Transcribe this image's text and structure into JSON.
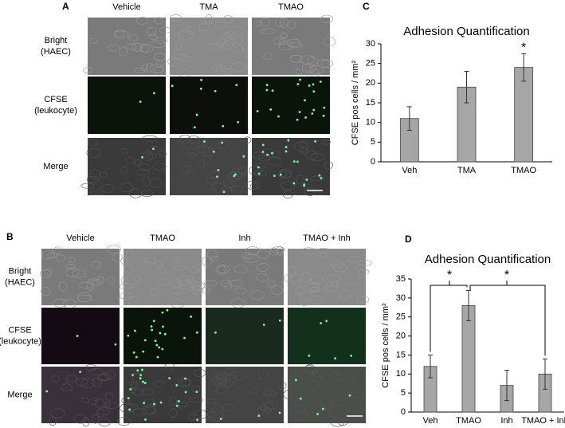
{
  "figure": {
    "panel_a": {
      "letter": "A",
      "columns": [
        "Vehicle",
        "TMA",
        "TMAO"
      ],
      "rows": [
        "Bright\n(HAEC)",
        "CFSE\n(leukocyte)",
        "Merge"
      ]
    },
    "panel_b": {
      "letter": "B",
      "columns": [
        "Vehicle",
        "TMAO",
        "Inh",
        "TMAO + Inh"
      ],
      "rows": [
        "Bright\n(HAEC)",
        "CFSE\n(leukocyte)",
        "Merge"
      ]
    },
    "panel_c_letter": "C",
    "panel_d_letter": "D"
  },
  "chart_data": [
    {
      "type": "bar",
      "title": "Adhesion Quantification",
      "ylabel": "CFSE pos cells / mm²",
      "categories": [
        "Veh",
        "TMA",
        "TMAO"
      ],
      "values": [
        11,
        19,
        24
      ],
      "errors": [
        3,
        4,
        3.5
      ],
      "color": "#a6a6a6",
      "ylim": [
        0,
        30
      ],
      "yticks": [
        0,
        5,
        10,
        15,
        20,
        25,
        30
      ],
      "annotations": [
        "*"
      ]
    },
    {
      "type": "bar",
      "title": "Adhesion Quantification",
      "ylabel": "CFSE pos cells / mm²",
      "categories": [
        "Veh",
        "TMAO",
        "Inh",
        "TMAO + Inh"
      ],
      "values": [
        12,
        28,
        7,
        10
      ],
      "errors": [
        3,
        4,
        4,
        4
      ],
      "color": "#a6a6a6",
      "ylim": [
        0,
        35
      ],
      "yticks": [
        0,
        5,
        10,
        15,
        20,
        25,
        30,
        35
      ],
      "annotations": [
        "*",
        "*"
      ]
    }
  ]
}
